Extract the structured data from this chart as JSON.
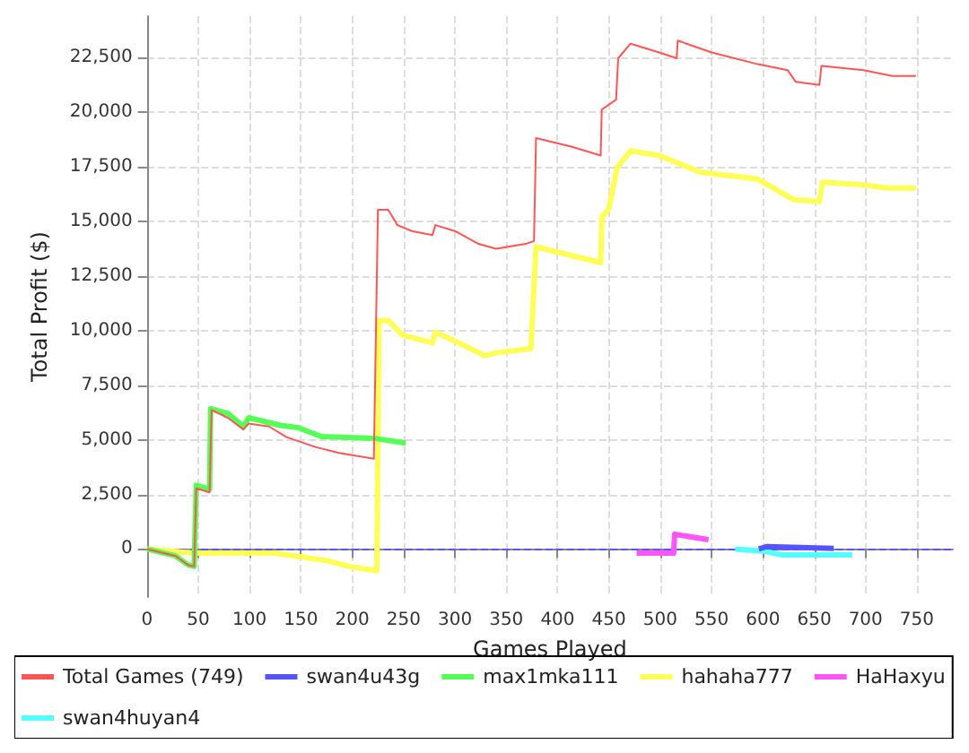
{
  "chart_data": {
    "type": "line",
    "xlabel": "Games Played",
    "ylabel": "Total Profit ($)",
    "xlim": [
      0,
      785
    ],
    "ylim": [
      -2200,
      24400
    ],
    "xticks": [
      0,
      50,
      100,
      150,
      200,
      250,
      300,
      350,
      400,
      450,
      500,
      550,
      600,
      650,
      700,
      750
    ],
    "yticks": [
      0,
      {
        "value": 2500,
        "label": "2,500"
      },
      {
        "value": 5000,
        "label": "5,000"
      },
      {
        "value": 7500,
        "label": "7,500"
      },
      {
        "value": 10000,
        "label": "10,000"
      },
      {
        "value": 12500,
        "label": "12,500"
      },
      {
        "value": 15000,
        "label": "15,000"
      },
      {
        "value": 17500,
        "label": "17,500"
      },
      {
        "value": 20000,
        "label": "20,000"
      },
      {
        "value": 22500,
        "label": "22,500"
      }
    ],
    "grid": true,
    "legend": "bottom",
    "marker": "none",
    "line_style": "solid",
    "ref_lines": [
      {
        "axis": "y",
        "value": 0,
        "color": "#5555ff",
        "line_style": "dashed"
      }
    ],
    "series": [
      {
        "name": "Total Games (749)",
        "color": "#ff5555",
        "x": [
          0,
          28,
          40,
          46,
          48,
          61,
          63,
          79,
          94,
          99,
          119,
          136,
          164,
          187,
          221,
          225,
          235,
          244,
          258,
          278,
          281,
          300,
          323,
          340,
          369,
          377,
          379,
          414,
          442,
          443,
          457,
          459,
          471,
          499,
          516,
          517,
          550,
          595,
          624,
          632,
          655,
          657,
          698,
          726,
          749
        ],
        "values": [
          0,
          -320,
          -730,
          -800,
          2780,
          2590,
          6360,
          6000,
          5470,
          5740,
          5610,
          5120,
          4670,
          4400,
          4130,
          15530,
          15530,
          14830,
          14560,
          14370,
          14830,
          14560,
          13970,
          13750,
          13970,
          14100,
          18820,
          18420,
          18020,
          20120,
          20580,
          22470,
          23140,
          22740,
          22470,
          23280,
          22740,
          22200,
          21930,
          21390,
          21250,
          22120,
          21930,
          21660,
          21660
        ]
      },
      {
        "name": "swan4u43g",
        "color": "#5555ff",
        "x": [
          596,
          604,
          669
        ],
        "values": [
          0,
          110,
          30
        ]
      },
      {
        "name": "max1mka111",
        "color": "#55ff55",
        "x": [
          0,
          28,
          40,
          46,
          48,
          61,
          62,
          79,
          94,
          99,
          130,
          147,
          170,
          221,
          252
        ],
        "values": [
          0,
          -320,
          -730,
          -800,
          2920,
          2740,
          6420,
          6200,
          5610,
          6010,
          5660,
          5560,
          5150,
          5070,
          4850
        ]
      },
      {
        "name": "hahaha777",
        "color": "#ffff55",
        "x": [
          0,
          46,
          125,
          176,
          198,
          224,
          226,
          235,
          249,
          278,
          281,
          300,
          329,
          340,
          374,
          379,
          414,
          442,
          443,
          450,
          458,
          471,
          499,
          539,
          595,
          630,
          655,
          658,
          698,
          720,
          749
        ],
        "values": [
          0,
          -190,
          -190,
          -540,
          -810,
          -1000,
          10460,
          10460,
          9790,
          9440,
          9930,
          9520,
          8850,
          8980,
          9170,
          13840,
          13430,
          13110,
          15180,
          15590,
          17480,
          18230,
          18020,
          17260,
          16940,
          15990,
          15910,
          16800,
          16670,
          16530,
          16530
        ]
      },
      {
        "name": "HaHaxyu",
        "color": "#ff55ff",
        "x": [
          477,
          513,
          514,
          547
        ],
        "values": [
          -190,
          -190,
          670,
          430
        ]
      },
      {
        "name": "swan4huyan4",
        "color": "#55ffff",
        "x": [
          573,
          602,
          619,
          687
        ],
        "values": [
          0,
          -110,
          -270,
          -270
        ]
      }
    ]
  }
}
